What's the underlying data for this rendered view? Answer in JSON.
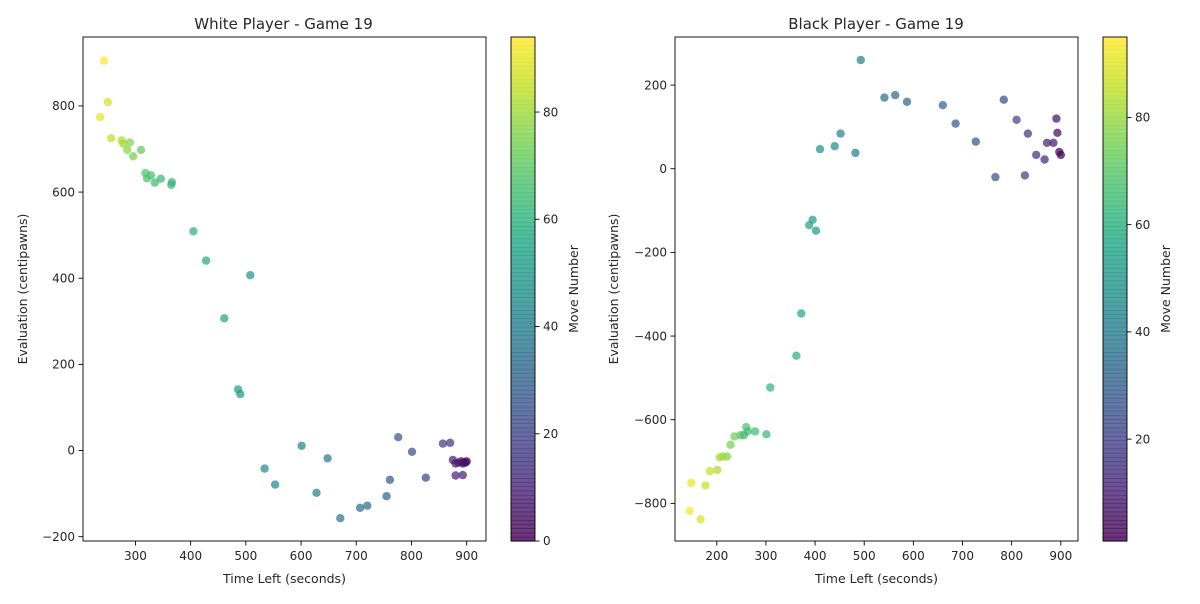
{
  "chart_data": [
    {
      "type": "scatter",
      "title": "White Player - Game 19",
      "xlabel": "Time Left (seconds)",
      "ylabel": "Evaluation (centipawns)",
      "colorbar_label": "Move Number",
      "xlim": [
        205,
        935
      ],
      "ylim": [
        -210,
        960
      ],
      "xticks": [
        300,
        400,
        500,
        600,
        700,
        800,
        900
      ],
      "yticks": [
        -200,
        0,
        200,
        400,
        600,
        800
      ],
      "cbar_range": [
        0,
        94
      ],
      "cbar_ticks": [
        0,
        20,
        40,
        60,
        80
      ],
      "colormap": "viridis",
      "points": [
        {
          "x": 900,
          "y": -25,
          "m": 1
        },
        {
          "x": 898,
          "y": -28,
          "m": 2
        },
        {
          "x": 895,
          "y": -27,
          "m": 3
        },
        {
          "x": 893,
          "y": -30,
          "m": 4
        },
        {
          "x": 890,
          "y": -25,
          "m": 5
        },
        {
          "x": 885,
          "y": -28,
          "m": 6
        },
        {
          "x": 880,
          "y": -30,
          "m": 7
        },
        {
          "x": 875,
          "y": -22,
          "m": 8
        },
        {
          "x": 893,
          "y": -57,
          "m": 9
        },
        {
          "x": 880,
          "y": -58,
          "m": 10
        },
        {
          "x": 870,
          "y": 18,
          "m": 14
        },
        {
          "x": 857,
          "y": 16,
          "m": 17
        },
        {
          "x": 826,
          "y": -63,
          "m": 20
        },
        {
          "x": 801,
          "y": -3,
          "m": 22
        },
        {
          "x": 776,
          "y": 31,
          "m": 24
        },
        {
          "x": 761,
          "y": -68,
          "m": 26
        },
        {
          "x": 755,
          "y": -106,
          "m": 30
        },
        {
          "x": 720,
          "y": -128,
          "m": 32
        },
        {
          "x": 707,
          "y": -133,
          "m": 33
        },
        {
          "x": 671,
          "y": -157,
          "m": 36
        },
        {
          "x": 648,
          "y": -18,
          "m": 38
        },
        {
          "x": 628,
          "y": -98,
          "m": 40
        },
        {
          "x": 601,
          "y": 11,
          "m": 42
        },
        {
          "x": 553,
          "y": -79,
          "m": 44
        },
        {
          "x": 534,
          "y": -42,
          "m": 46
        },
        {
          "x": 508,
          "y": 407,
          "m": 49
        },
        {
          "x": 490,
          "y": 131,
          "m": 51
        },
        {
          "x": 486,
          "y": 142,
          "m": 53
        },
        {
          "x": 461,
          "y": 307,
          "m": 55
        },
        {
          "x": 428,
          "y": 441,
          "m": 57
        },
        {
          "x": 405,
          "y": 509,
          "m": 59
        },
        {
          "x": 365,
          "y": 617,
          "m": 61
        },
        {
          "x": 366,
          "y": 623,
          "m": 62
        },
        {
          "x": 346,
          "y": 631,
          "m": 63
        },
        {
          "x": 335,
          "y": 622,
          "m": 64
        },
        {
          "x": 328,
          "y": 639,
          "m": 66
        },
        {
          "x": 321,
          "y": 632,
          "m": 67
        },
        {
          "x": 318,
          "y": 644,
          "m": 68
        },
        {
          "x": 310,
          "y": 698,
          "m": 71
        },
        {
          "x": 296,
          "y": 683,
          "m": 74
        },
        {
          "x": 290,
          "y": 715,
          "m": 76
        },
        {
          "x": 285,
          "y": 698,
          "m": 78
        },
        {
          "x": 278,
          "y": 712,
          "m": 80
        },
        {
          "x": 275,
          "y": 720,
          "m": 82
        },
        {
          "x": 256,
          "y": 725,
          "m": 85
        },
        {
          "x": 250,
          "y": 809,
          "m": 88
        },
        {
          "x": 236,
          "y": 774,
          "m": 90
        },
        {
          "x": 243,
          "y": 905,
          "m": 94
        }
      ]
    },
    {
      "type": "scatter",
      "title": "Black Player - Game 19",
      "xlabel": "Time Left (seconds)",
      "ylabel": "Evaluation (centipawns)",
      "colorbar_label": "Move Number",
      "xlim": [
        115,
        935
      ],
      "ylim": [
        -890,
        315
      ],
      "xticks": [
        200,
        300,
        400,
        500,
        600,
        700,
        800,
        900
      ],
      "yticks": [
        -800,
        -600,
        -400,
        -200,
        0,
        200
      ],
      "cbar_range": [
        1,
        95
      ],
      "cbar_ticks": [
        20,
        40,
        60,
        80
      ],
      "colormap": "viridis",
      "points": [
        {
          "x": 900,
          "y": 33,
          "m": 1
        },
        {
          "x": 897,
          "y": 40,
          "m": 2
        },
        {
          "x": 893,
          "y": 86,
          "m": 4
        },
        {
          "x": 891,
          "y": 120,
          "m": 6
        },
        {
          "x": 885,
          "y": 62,
          "m": 8
        },
        {
          "x": 872,
          "y": 62,
          "m": 10
        },
        {
          "x": 867,
          "y": 22,
          "m": 12
        },
        {
          "x": 850,
          "y": 33,
          "m": 14
        },
        {
          "x": 833,
          "y": 84,
          "m": 16
        },
        {
          "x": 827,
          "y": -16,
          "m": 18
        },
        {
          "x": 810,
          "y": 117,
          "m": 20
        },
        {
          "x": 784,
          "y": 165,
          "m": 22
        },
        {
          "x": 767,
          "y": -20,
          "m": 24
        },
        {
          "x": 727,
          "y": 65,
          "m": 26
        },
        {
          "x": 686,
          "y": 108,
          "m": 28
        },
        {
          "x": 660,
          "y": 152,
          "m": 30
        },
        {
          "x": 587,
          "y": 160,
          "m": 32
        },
        {
          "x": 563,
          "y": 176,
          "m": 34
        },
        {
          "x": 541,
          "y": 170,
          "m": 36
        },
        {
          "x": 493,
          "y": 260,
          "m": 42
        },
        {
          "x": 482,
          "y": 38,
          "m": 40
        },
        {
          "x": 452,
          "y": 84,
          "m": 44
        },
        {
          "x": 440,
          "y": 54,
          "m": 46
        },
        {
          "x": 410,
          "y": 47,
          "m": 48
        },
        {
          "x": 402,
          "y": -148,
          "m": 52
        },
        {
          "x": 395,
          "y": -122,
          "m": 54
        },
        {
          "x": 388,
          "y": -135,
          "m": 56
        },
        {
          "x": 372,
          "y": -346,
          "m": 58
        },
        {
          "x": 362,
          "y": -447,
          "m": 60
        },
        {
          "x": 309,
          "y": -523,
          "m": 62
        },
        {
          "x": 301,
          "y": -635,
          "m": 64
        },
        {
          "x": 278,
          "y": -628,
          "m": 66
        },
        {
          "x": 260,
          "y": -618,
          "m": 68
        },
        {
          "x": 263,
          "y": -628,
          "m": 65
        },
        {
          "x": 255,
          "y": -637,
          "m": 63
        },
        {
          "x": 248,
          "y": -637,
          "m": 70
        },
        {
          "x": 236,
          "y": -640,
          "m": 74
        },
        {
          "x": 228,
          "y": -660,
          "m": 76
        },
        {
          "x": 221,
          "y": -688,
          "m": 78
        },
        {
          "x": 212,
          "y": -688,
          "m": 80
        },
        {
          "x": 206,
          "y": -690,
          "m": 82
        },
        {
          "x": 201,
          "y": -720,
          "m": 84
        },
        {
          "x": 186,
          "y": -723,
          "m": 86
        },
        {
          "x": 177,
          "y": -757,
          "m": 88
        },
        {
          "x": 167,
          "y": -838,
          "m": 90
        },
        {
          "x": 148,
          "y": -751,
          "m": 92
        },
        {
          "x": 145,
          "y": -818,
          "m": 94
        }
      ]
    }
  ]
}
